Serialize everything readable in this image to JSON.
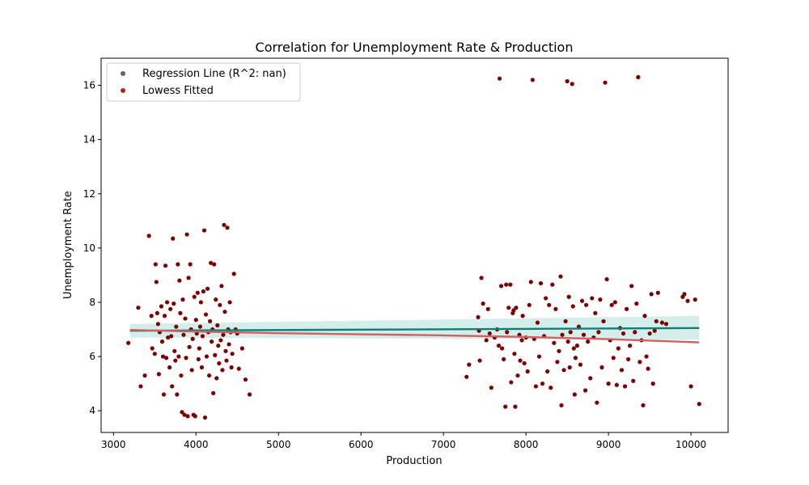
{
  "chart_data": {
    "type": "scatter",
    "title": "Correlation for Unemployment Rate & Production",
    "xlabel": "Production",
    "ylabel": "Unemployment Rate",
    "xlim": [
      2850,
      10450
    ],
    "ylim": [
      3.2,
      17.0
    ],
    "x_ticks": [
      3000,
      4000,
      5000,
      6000,
      7000,
      8000,
      9000,
      10000
    ],
    "y_ticks": [
      4,
      6,
      8,
      10,
      12,
      14,
      16
    ],
    "grid": false,
    "legend": {
      "placement": "top-left",
      "entries": [
        "Regression Line (R^2: nan)",
        "Lowess Fitted"
      ]
    },
    "colors": {
      "points": "#7b0000",
      "regression_line": "#0e8076",
      "confidence_band": "#b7e3de",
      "lowess_line": "#d16060",
      "legend_regression_marker": "#4f6d66",
      "legend_lowess_marker": "#b02424"
    },
    "series": [
      {
        "name": "Regression Line (R^2: nan)",
        "type": "line",
        "x": [
          3200,
          10100
        ],
        "y": [
          6.95,
          7.05
        ],
        "band_lower": [
          6.7,
          6.62
        ],
        "band_upper": [
          7.2,
          7.5
        ]
      },
      {
        "name": "Lowess Fitted",
        "type": "line",
        "x": [
          3200,
          4000,
          5000,
          6000,
          7000,
          8000,
          9000,
          10100
        ],
        "y": [
          6.98,
          6.92,
          6.86,
          6.82,
          6.78,
          6.72,
          6.64,
          6.52
        ]
      },
      {
        "name": "",
        "type": "scatter",
        "points": [
          [
            3180,
            6.5
          ],
          [
            3300,
            7.8
          ],
          [
            3330,
            4.9
          ],
          [
            3380,
            5.3
          ],
          [
            3430,
            10.45
          ],
          [
            3460,
            7.5
          ],
          [
            3470,
            6.3
          ],
          [
            3500,
            6.1
          ],
          [
            3510,
            9.4
          ],
          [
            3520,
            8.75
          ],
          [
            3530,
            7.6
          ],
          [
            3540,
            7.2
          ],
          [
            3550,
            5.35
          ],
          [
            3560,
            6.9
          ],
          [
            3580,
            7.85
          ],
          [
            3590,
            6.55
          ],
          [
            3600,
            6.0
          ],
          [
            3610,
            4.6
          ],
          [
            3620,
            7.5
          ],
          [
            3630,
            9.35
          ],
          [
            3640,
            5.95
          ],
          [
            3650,
            8.0
          ],
          [
            3660,
            6.7
          ],
          [
            3680,
            5.6
          ],
          [
            3690,
            7.75
          ],
          [
            3700,
            6.75
          ],
          [
            3710,
            4.9
          ],
          [
            3720,
            10.35
          ],
          [
            3730,
            7.95
          ],
          [
            3740,
            6.2
          ],
          [
            3750,
            5.85
          ],
          [
            3760,
            7.1
          ],
          [
            3770,
            4.6
          ],
          [
            3780,
            9.4
          ],
          [
            3790,
            6.0
          ],
          [
            3800,
            8.8
          ],
          [
            3810,
            7.6
          ],
          [
            3820,
            5.3
          ],
          [
            3830,
            3.95
          ],
          [
            3840,
            8.1
          ],
          [
            3850,
            6.8
          ],
          [
            3860,
            3.85
          ],
          [
            3870,
            7.4
          ],
          [
            3880,
            5.95
          ],
          [
            3890,
            10.5
          ],
          [
            3900,
            3.8
          ],
          [
            3910,
            8.9
          ],
          [
            3920,
            6.35
          ],
          [
            3930,
            9.4
          ],
          [
            3940,
            7.0
          ],
          [
            3950,
            5.5
          ],
          [
            3960,
            6.65
          ],
          [
            3970,
            3.85
          ],
          [
            3980,
            8.2
          ],
          [
            3990,
            3.8
          ],
          [
            4000,
            7.35
          ],
          [
            4010,
            6.85
          ],
          [
            4020,
            8.35
          ],
          [
            4030,
            5.9
          ],
          [
            4040,
            6.3
          ],
          [
            4050,
            7.1
          ],
          [
            4060,
            8.0
          ],
          [
            4070,
            5.6
          ],
          [
            4080,
            6.75
          ],
          [
            4090,
            8.4
          ],
          [
            4100,
            10.65
          ],
          [
            4110,
            3.75
          ],
          [
            4120,
            7.55
          ],
          [
            4130,
            6.0
          ],
          [
            4140,
            8.5
          ],
          [
            4150,
            6.9
          ],
          [
            4160,
            5.3
          ],
          [
            4170,
            7.3
          ],
          [
            4180,
            9.45
          ],
          [
            4190,
            6.55
          ],
          [
            4200,
            7.0
          ],
          [
            4210,
            4.65
          ],
          [
            4220,
            9.4
          ],
          [
            4230,
            6.05
          ],
          [
            4240,
            8.1
          ],
          [
            4250,
            5.2
          ],
          [
            4260,
            7.15
          ],
          [
            4270,
            6.4
          ],
          [
            4280,
            5.75
          ],
          [
            4290,
            7.9
          ],
          [
            4300,
            6.6
          ],
          [
            4310,
            8.6
          ],
          [
            4320,
            5.5
          ],
          [
            4330,
            6.8
          ],
          [
            4340,
            10.85
          ],
          [
            4350,
            7.65
          ],
          [
            4360,
            6.2
          ],
          [
            4370,
            5.85
          ],
          [
            4380,
            10.75
          ],
          [
            4390,
            7.0
          ],
          [
            4400,
            6.45
          ],
          [
            4410,
            8.0
          ],
          [
            4420,
            6.9
          ],
          [
            4430,
            5.6
          ],
          [
            4440,
            6.1
          ],
          [
            4460,
            9.05
          ],
          [
            4480,
            7.0
          ],
          [
            4500,
            6.85
          ],
          [
            4520,
            5.55
          ],
          [
            4560,
            6.3
          ],
          [
            4600,
            5.15
          ],
          [
            4650,
            4.6
          ],
          [
            7280,
            5.25
          ],
          [
            7310,
            5.7
          ],
          [
            7420,
            7.45
          ],
          [
            7430,
            6.95
          ],
          [
            7440,
            5.85
          ],
          [
            7460,
            8.9
          ],
          [
            7480,
            7.95
          ],
          [
            7520,
            6.6
          ],
          [
            7540,
            7.75
          ],
          [
            7560,
            6.85
          ],
          [
            7580,
            4.85
          ],
          [
            7620,
            6.7
          ],
          [
            7650,
            7.0
          ],
          [
            7670,
            6.4
          ],
          [
            7680,
            16.25
          ],
          [
            7700,
            8.6
          ],
          [
            7710,
            6.3
          ],
          [
            7730,
            5.9
          ],
          [
            7750,
            4.15
          ],
          [
            7760,
            8.65
          ],
          [
            7770,
            6.9
          ],
          [
            7790,
            7.8
          ],
          [
            7810,
            8.65
          ],
          [
            7820,
            5.05
          ],
          [
            7840,
            7.6
          ],
          [
            7850,
            7.7
          ],
          [
            7860,
            6.1
          ],
          [
            7870,
            4.15
          ],
          [
            7880,
            7.8
          ],
          [
            7900,
            5.3
          ],
          [
            7920,
            6.8
          ],
          [
            7930,
            5.85
          ],
          [
            7950,
            6.6
          ],
          [
            7960,
            7.5
          ],
          [
            7980,
            5.75
          ],
          [
            8000,
            6.7
          ],
          [
            8020,
            5.45
          ],
          [
            8040,
            7.9
          ],
          [
            8060,
            8.75
          ],
          [
            8080,
            16.2
          ],
          [
            8100,
            6.65
          ],
          [
            8120,
            4.9
          ],
          [
            8140,
            7.25
          ],
          [
            8160,
            6.0
          ],
          [
            8180,
            8.7
          ],
          [
            8200,
            5.0
          ],
          [
            8220,
            6.75
          ],
          [
            8240,
            8.15
          ],
          [
            8260,
            5.45
          ],
          [
            8280,
            7.9
          ],
          [
            8300,
            4.85
          ],
          [
            8320,
            8.65
          ],
          [
            8340,
            6.5
          ],
          [
            8360,
            7.75
          ],
          [
            8380,
            5.8
          ],
          [
            8400,
            6.2
          ],
          [
            8420,
            8.95
          ],
          [
            8430,
            4.2
          ],
          [
            8440,
            6.8
          ],
          [
            8460,
            5.5
          ],
          [
            8480,
            7.3
          ],
          [
            8500,
            16.15
          ],
          [
            8510,
            6.55
          ],
          [
            8520,
            8.2
          ],
          [
            8530,
            5.6
          ],
          [
            8540,
            6.9
          ],
          [
            8560,
            16.05
          ],
          [
            8570,
            7.85
          ],
          [
            8580,
            6.3
          ],
          [
            8590,
            4.6
          ],
          [
            8600,
            5.95
          ],
          [
            8620,
            6.4
          ],
          [
            8640,
            7.1
          ],
          [
            8660,
            5.7
          ],
          [
            8680,
            8.05
          ],
          [
            8700,
            6.8
          ],
          [
            8720,
            4.75
          ],
          [
            8730,
            7.9
          ],
          [
            8750,
            6.55
          ],
          [
            8780,
            5.2
          ],
          [
            8800,
            8.15
          ],
          [
            8820,
            6.7
          ],
          [
            8840,
            7.6
          ],
          [
            8860,
            4.3
          ],
          [
            8880,
            6.9
          ],
          [
            8900,
            8.1
          ],
          [
            8920,
            5.6
          ],
          [
            8940,
            7.3
          ],
          [
            8960,
            16.1
          ],
          [
            8980,
            8.85
          ],
          [
            9000,
            5.0
          ],
          [
            9020,
            6.6
          ],
          [
            9040,
            7.9
          ],
          [
            9060,
            5.95
          ],
          [
            9080,
            8.0
          ],
          [
            9100,
            4.95
          ],
          [
            9120,
            6.3
          ],
          [
            9140,
            7.05
          ],
          [
            9160,
            5.5
          ],
          [
            9180,
            6.85
          ],
          [
            9200,
            4.9
          ],
          [
            9220,
            7.75
          ],
          [
            9240,
            5.9
          ],
          [
            9260,
            6.4
          ],
          [
            9280,
            8.6
          ],
          [
            9300,
            5.1
          ],
          [
            9320,
            6.9
          ],
          [
            9340,
            7.95
          ],
          [
            9360,
            16.3
          ],
          [
            9380,
            5.8
          ],
          [
            9400,
            6.6
          ],
          [
            9420,
            4.2
          ],
          [
            9440,
            7.5
          ],
          [
            9460,
            6.0
          ],
          [
            9480,
            5.55
          ],
          [
            9500,
            6.85
          ],
          [
            9520,
            8.3
          ],
          [
            9540,
            5.0
          ],
          [
            9560,
            6.95
          ],
          [
            9580,
            7.3
          ],
          [
            9600,
            8.35
          ],
          [
            9650,
            7.25
          ],
          [
            9700,
            7.2
          ],
          [
            9900,
            8.2
          ],
          [
            9920,
            8.3
          ],
          [
            9960,
            8.05
          ],
          [
            10000,
            4.9
          ],
          [
            10050,
            8.1
          ],
          [
            10100,
            4.25
          ]
        ]
      }
    ]
  }
}
